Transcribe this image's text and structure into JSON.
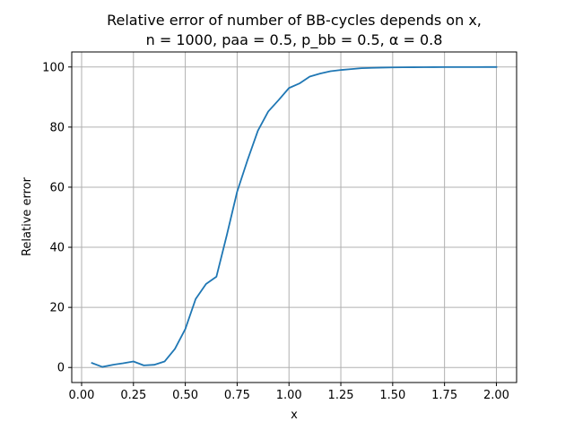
{
  "chart_data": {
    "type": "line",
    "title": "Relative error of number of BB-cycles depends on x,",
    "subtitle": "n = 1000, paa = 0.5, p_bb = 0.5, α = 0.8",
    "xlabel": "x",
    "ylabel": "Relative error",
    "xlim": [
      -0.0475,
      2.0975
    ],
    "ylim": [
      -5.0,
      105.0
    ],
    "xticks": [
      0.0,
      0.25,
      0.5,
      0.75,
      1.0,
      1.25,
      1.5,
      1.75,
      2.0
    ],
    "xtick_labels": [
      "0.00",
      "0.25",
      "0.50",
      "0.75",
      "1.00",
      "1.25",
      "1.50",
      "1.75",
      "2.00"
    ],
    "yticks": [
      0,
      20,
      40,
      60,
      80,
      100
    ],
    "ytick_labels": [
      "0",
      "20",
      "40",
      "60",
      "80",
      "100"
    ],
    "grid": true,
    "line_color": "#1f77b4",
    "series": [
      {
        "x": [
          0.05,
          0.1,
          0.15,
          0.2,
          0.25,
          0.3,
          0.35,
          0.4,
          0.45,
          0.5,
          0.55,
          0.6,
          0.65,
          0.7,
          0.75,
          0.8,
          0.85,
          0.9,
          0.95,
          1.0,
          1.05,
          1.1,
          1.15,
          1.2,
          1.25,
          1.3,
          1.35,
          1.4,
          1.45,
          1.5,
          1.55,
          1.6,
          1.65,
          1.7,
          1.75,
          1.8,
          1.85,
          1.9,
          1.95,
          2.0
        ],
        "values": [
          1.5,
          0.2,
          0.9,
          1.4,
          2.0,
          0.7,
          0.9,
          2.0,
          6.2,
          12.8,
          22.8,
          27.8,
          30.2,
          44.0,
          58.5,
          69.0,
          78.8,
          85.2,
          89.0,
          93.0,
          94.5,
          96.8,
          97.8,
          98.6,
          99.0,
          99.3,
          99.6,
          99.7,
          99.8,
          99.85,
          99.9,
          99.92,
          99.94,
          99.95,
          99.96,
          99.97,
          99.98,
          99.98,
          99.99,
          99.99
        ]
      }
    ]
  }
}
